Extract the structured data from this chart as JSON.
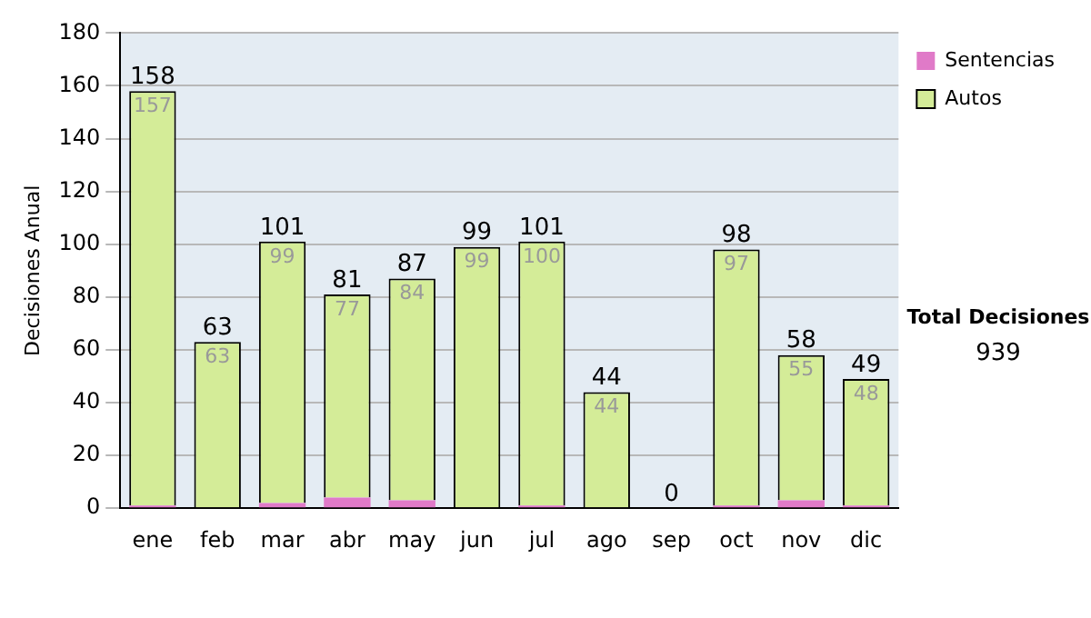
{
  "chart_data": {
    "type": "bar",
    "stacked": true,
    "ylabel": "Decisiones Anual",
    "categories": [
      "ene",
      "feb",
      "mar",
      "abr",
      "may",
      "jun",
      "jul",
      "ago",
      "sep",
      "oct",
      "nov",
      "dic"
    ],
    "series": [
      {
        "name": "Sentencias",
        "color": "#e07ac8",
        "values": [
          1,
          0,
          2,
          4,
          3,
          0,
          1,
          0,
          0,
          1,
          3,
          1
        ]
      },
      {
        "name": "Autos",
        "color": "#d4ec98",
        "values": [
          157,
          63,
          99,
          77,
          84,
          99,
          100,
          44,
          0,
          97,
          55,
          48
        ],
        "value_labels": [
          "157",
          "63",
          "99",
          "77",
          "84",
          "99",
          "100",
          "44",
          null,
          "97",
          "55",
          "48"
        ]
      }
    ],
    "totals": [
      "158",
      "63",
      "101",
      "81",
      "87",
      "99",
      "101",
      "44",
      "0",
      "98",
      "58",
      "49"
    ],
    "ylim": [
      0,
      180
    ],
    "yticks": [
      0,
      20,
      40,
      60,
      80,
      100,
      120,
      140,
      160,
      180
    ],
    "grid": "y",
    "legend": "right",
    "annotations": [
      "Total Decisiones",
      "939"
    ]
  }
}
